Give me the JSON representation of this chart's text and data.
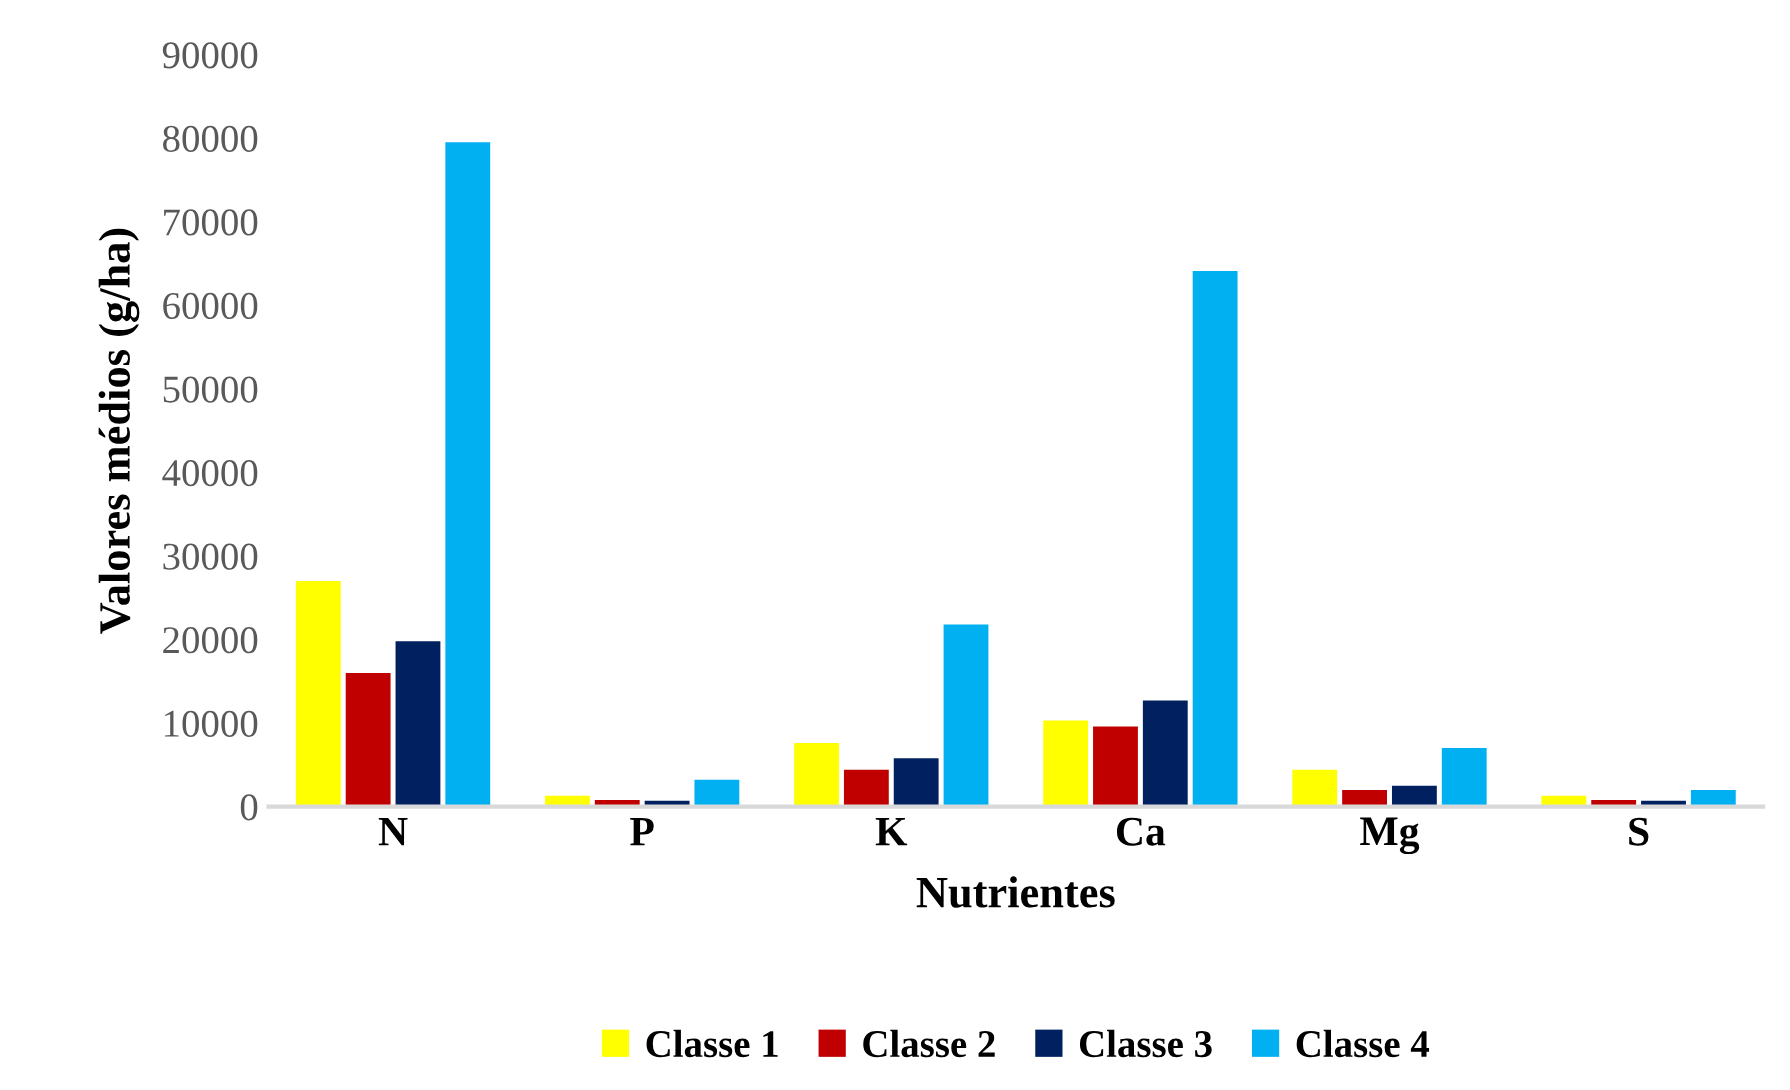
{
  "chart_data": {
    "type": "bar",
    "xlabel": "Nutrientes",
    "ylabel": "Valores médios (g/ha)",
    "categories": [
      "N",
      "P",
      "K",
      "Ca",
      "Mg",
      "S"
    ],
    "series": [
      {
        "name": "Classe 1",
        "color": "#ffff00",
        "values": [
          27000,
          1300,
          7600,
          10300,
          4400,
          1300
        ]
      },
      {
        "name": "Classe 2",
        "color": "#c00000",
        "values": [
          16000,
          800,
          4400,
          9600,
          2000,
          800
        ]
      },
      {
        "name": "Classe 3",
        "color": "#002060",
        "values": [
          19800,
          700,
          5800,
          12700,
          2500,
          700
        ]
      },
      {
        "name": "Classe 4",
        "color": "#00b0f0",
        "values": [
          79500,
          3200,
          21800,
          64100,
          7000,
          2000
        ]
      }
    ],
    "ylim": [
      0,
      90000
    ],
    "yticks": [
      0,
      10000,
      20000,
      30000,
      40000,
      50000,
      60000,
      70000,
      80000,
      90000
    ],
    "grid": false,
    "legend": "bottom"
  }
}
